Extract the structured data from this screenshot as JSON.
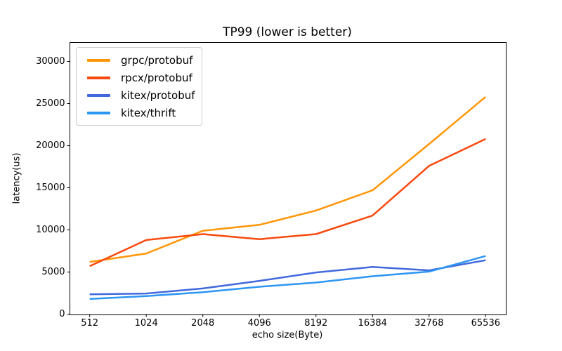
{
  "chart_data": {
    "type": "line",
    "title": "TP99 (lower is better)",
    "xlabel": "echo size(Byte)",
    "ylabel": "latency(us)",
    "categories": [
      "512",
      "1024",
      "2048",
      "4096",
      "8192",
      "16384",
      "32768",
      "65536"
    ],
    "yticks": [
      0,
      5000,
      10000,
      15000,
      20000,
      25000,
      30000
    ],
    "ylim": [
      0,
      32250
    ],
    "grid": false,
    "legend_position": "upper left",
    "axis_color": "#000000",
    "legend_border_color": "#cccccc",
    "series": [
      {
        "name": "grpc/protobuf",
        "color": "#FF9608",
        "values": [
          6200,
          7200,
          9900,
          10600,
          12300,
          14700,
          20200,
          25800
        ]
      },
      {
        "name": "rpcx/protobuf",
        "color": "#F8490E",
        "values": [
          5700,
          8800,
          9500,
          8900,
          9500,
          11700,
          17600,
          20800
        ]
      },
      {
        "name": "kitex/protobuf",
        "color": "#4169DD",
        "values": [
          2350,
          2450,
          3050,
          3950,
          4950,
          5600,
          5200,
          6400
        ]
      },
      {
        "name": "kitex/thrift",
        "color": "#2D95F2",
        "values": [
          1800,
          2150,
          2600,
          3250,
          3750,
          4500,
          5050,
          6900
        ]
      }
    ]
  }
}
